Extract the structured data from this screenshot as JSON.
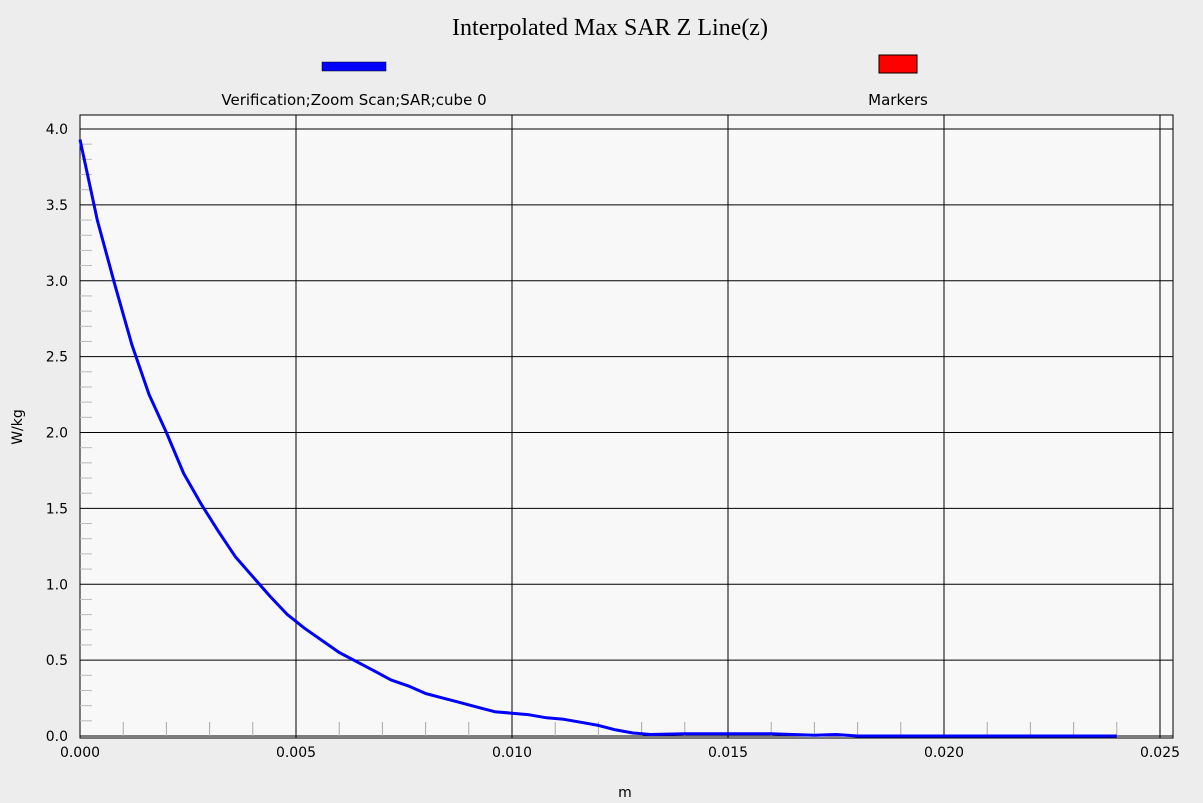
{
  "chart_data": {
    "type": "line",
    "title": "Interpolated Max SAR Z Line(z)",
    "xlabel": "m",
    "ylabel": "W/kg",
    "xlim": [
      0,
      0.025
    ],
    "ylim": [
      0,
      4.0
    ],
    "xticks": [
      "0.000",
      "0.005",
      "0.010",
      "0.015",
      "0.020",
      "0.025"
    ],
    "yticks": [
      "0.0",
      "0.5",
      "1.0",
      "1.5",
      "2.0",
      "2.5",
      "3.0",
      "3.5",
      "4.0"
    ],
    "grid": true,
    "legend": [
      {
        "name": "Verification;Zoom Scan;SAR;cube 0",
        "color": "#0000ff"
      },
      {
        "name": "Markers",
        "color": "#ff0000"
      }
    ],
    "series": [
      {
        "name": "Verification;Zoom Scan;SAR;cube 0",
        "color": "#0000ff",
        "x": [
          0.0,
          0.0004,
          0.0008,
          0.0012,
          0.0016,
          0.002,
          0.0024,
          0.0028,
          0.0032,
          0.0036,
          0.004,
          0.0044,
          0.0048,
          0.0052,
          0.0056,
          0.006,
          0.0064,
          0.0068,
          0.0072,
          0.0076,
          0.008,
          0.0084,
          0.0088,
          0.0092,
          0.0096,
          0.01,
          0.0104,
          0.0108,
          0.0112,
          0.0116,
          0.012,
          0.0124,
          0.0128,
          0.0132,
          0.014,
          0.015,
          0.016,
          0.0165,
          0.017,
          0.0175,
          0.018,
          0.019,
          0.02,
          0.022,
          0.024
        ],
        "y": [
          3.93,
          3.4,
          2.98,
          2.58,
          2.25,
          2.0,
          1.73,
          1.53,
          1.35,
          1.18,
          1.05,
          0.92,
          0.8,
          0.71,
          0.63,
          0.55,
          0.49,
          0.43,
          0.37,
          0.33,
          0.28,
          0.25,
          0.22,
          0.19,
          0.16,
          0.15,
          0.14,
          0.12,
          0.11,
          0.09,
          0.07,
          0.04,
          0.02,
          0.01,
          0.015,
          0.015,
          0.015,
          0.01,
          0.005,
          0.01,
          0.0,
          0.0,
          0.0,
          0.0,
          0.0
        ]
      }
    ]
  }
}
